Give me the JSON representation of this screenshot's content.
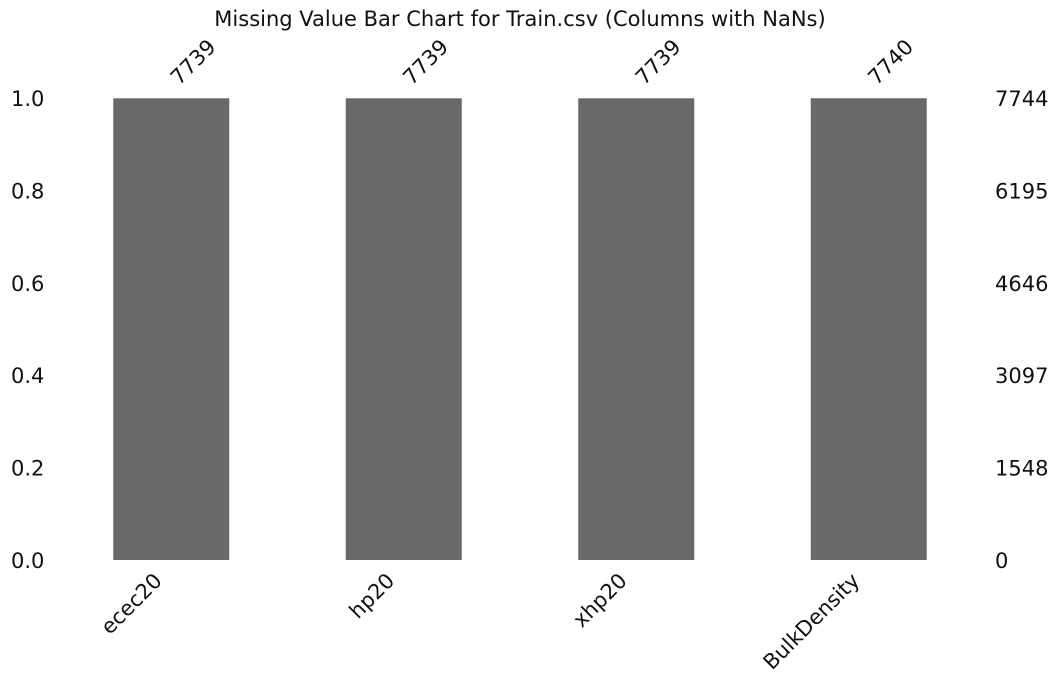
{
  "chart_data": {
    "type": "bar",
    "title": "Missing Value Bar Chart for Train.csv (Columns with NaNs)",
    "categories": [
      "ecec20",
      "hp20",
      "xhp20",
      "BulkDensity"
    ],
    "series": [
      {
        "values": [
          0.99935,
          0.99935,
          0.99935,
          0.99948
        ],
        "counts": [
          7739,
          7739,
          7739,
          7740
        ]
      }
    ],
    "total_rows": 7744,
    "ylim": [
      0,
      1
    ],
    "left_ticks": [
      "0.0",
      "0.2",
      "0.4",
      "0.6",
      "0.8",
      "1.0"
    ],
    "right_ticks": [
      "0",
      "1548",
      "3097",
      "4646",
      "6195",
      "7744"
    ],
    "bar_color": "#696969",
    "grid": false,
    "legend": "none"
  }
}
